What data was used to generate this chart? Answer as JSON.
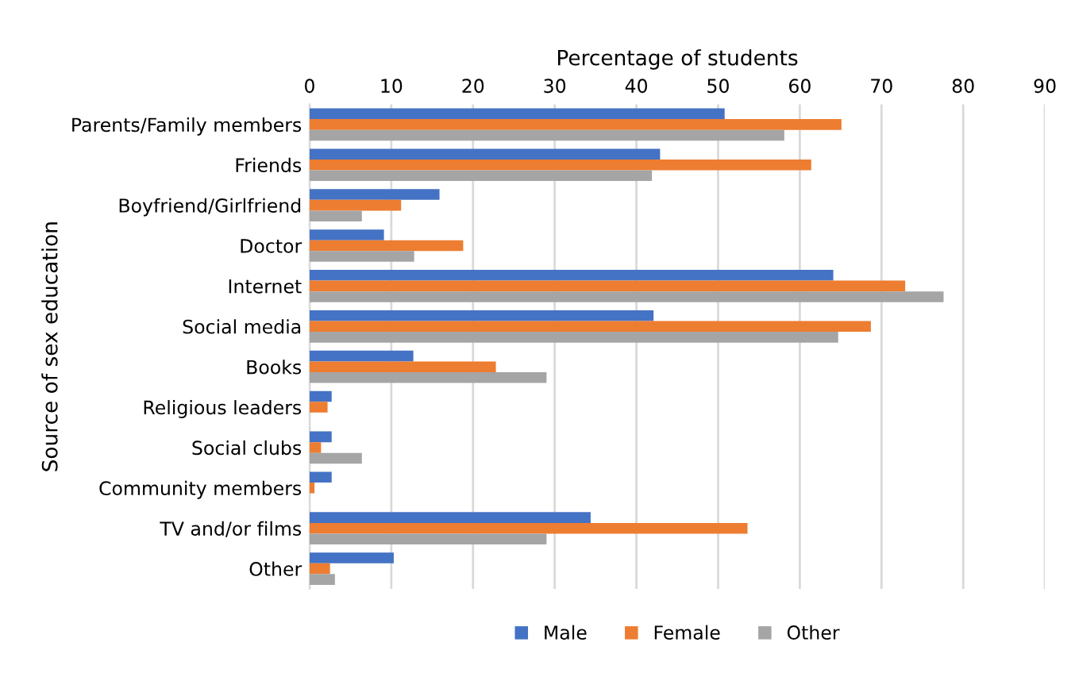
{
  "chart_data": {
    "type": "bar",
    "orientation": "horizontal",
    "xlabel": "Percentage of students",
    "ylabel": "Source of sex education",
    "categories": [
      "Parents/Family members",
      "Friends",
      "Boyfriend/Girlfriend",
      "Doctor",
      "Internet",
      "Social media",
      "Books",
      "Religious leaders",
      "Social clubs",
      "Community members",
      "TV and/or films",
      "Other"
    ],
    "series": [
      {
        "name": "Male",
        "color": "#4472c4",
        "values": [
          50.8,
          42.9,
          15.9,
          9.1,
          64.1,
          42.1,
          12.7,
          2.7,
          2.7,
          2.7,
          34.4,
          10.3
        ]
      },
      {
        "name": "Female",
        "color": "#ed7d31",
        "values": [
          65.1,
          61.4,
          11.2,
          18.8,
          72.9,
          68.7,
          22.8,
          2.2,
          1.4,
          0.6,
          53.6,
          2.5
        ]
      },
      {
        "name": "Other",
        "color": "#a5a5a5",
        "values": [
          58.1,
          41.9,
          6.4,
          12.8,
          77.6,
          64.7,
          29.0,
          0,
          6.4,
          0,
          29.0,
          3.1
        ]
      }
    ],
    "xlim": [
      0,
      90
    ],
    "xticks": [
      0,
      10,
      20,
      30,
      40,
      50,
      60,
      70,
      80,
      90
    ],
    "grid": "x",
    "legend": "bottom"
  }
}
